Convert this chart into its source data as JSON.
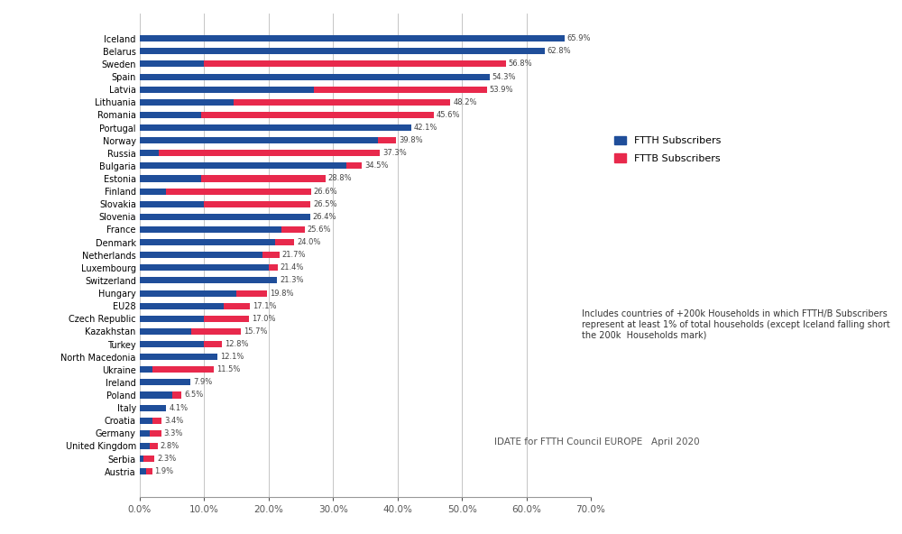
{
  "countries": [
    "Iceland",
    "Belarus",
    "Sweden",
    "Spain",
    "Latvia",
    "Lithuania",
    "Romania",
    "Portugal",
    "Norway",
    "Russia",
    "Bulgaria",
    "Estonia",
    "Finland",
    "Slovakia",
    "Slovenia",
    "France",
    "Denmark",
    "Netherlands",
    "Luxembourg",
    "Switzerland",
    "Hungary",
    "EU28",
    "Czech Republic",
    "Kazakhstan",
    "Turkey",
    "North Macedonia",
    "Ukraine",
    "Ireland",
    "Poland",
    "Italy",
    "Croatia",
    "Germany",
    "United Kingdom",
    "Serbia",
    "Austria"
  ],
  "ftth": [
    65.9,
    62.8,
    10.0,
    54.3,
    27.0,
    14.5,
    9.5,
    42.1,
    37.0,
    3.0,
    32.0,
    9.5,
    4.0,
    10.0,
    26.4,
    22.0,
    21.0,
    19.0,
    20.0,
    21.3,
    15.0,
    13.0,
    10.0,
    8.0,
    10.0,
    12.1,
    2.0,
    7.9,
    5.0,
    4.1,
    2.0,
    1.5,
    1.5,
    0.5,
    1.0
  ],
  "fttb": [
    0.0,
    0.0,
    46.8,
    0.0,
    26.9,
    33.7,
    36.1,
    0.0,
    2.8,
    34.3,
    2.5,
    19.3,
    22.6,
    16.5,
    0.0,
    3.6,
    3.0,
    2.7,
    1.4,
    0.0,
    4.8,
    4.1,
    7.0,
    7.7,
    2.8,
    0.0,
    9.5,
    0.0,
    1.5,
    0.0,
    1.4,
    1.8,
    1.3,
    1.8,
    0.9
  ],
  "totals": [
    65.9,
    62.8,
    56.8,
    54.3,
    53.9,
    48.2,
    45.6,
    42.1,
    39.8,
    37.3,
    34.5,
    28.8,
    26.6,
    26.5,
    26.4,
    25.6,
    24.0,
    21.7,
    21.4,
    21.3,
    19.8,
    17.1,
    17.0,
    15.7,
    12.8,
    12.1,
    11.5,
    7.9,
    6.5,
    4.1,
    3.4,
    3.3,
    2.8,
    2.3,
    1.9
  ],
  "ftth_color": "#1F4E9A",
  "fttb_color": "#E8294C",
  "background_color": "#FFFFFF",
  "annotation_text": "Includes countries of +200k Households in which FTTH/B Subscribers\nrepresent at least 1% of total households (except Iceland falling short\nthe 200k  Households mark)",
  "source_text": "IDATE for FTTH Council EUROPE   April 2020",
  "legend_ftth": "FTTH Subscribers",
  "legend_fttb": "FTTB Subscribers",
  "xlim": [
    0,
    70
  ],
  "xtick_vals": [
    0,
    10,
    20,
    30,
    40,
    50,
    60,
    70
  ],
  "xtick_labels": [
    "0.0%",
    "10.0%",
    "20.0%",
    "30.0%",
    "40.0%",
    "50.0%",
    "60.0%",
    "70.0%"
  ]
}
